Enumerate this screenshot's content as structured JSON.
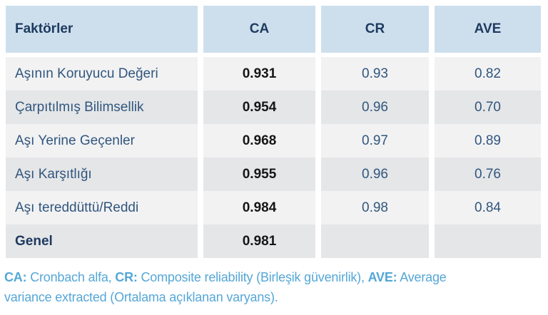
{
  "colors": {
    "header_bg": "#cddfed",
    "row_light": "#f2f2f3",
    "row_dark": "#e5e6e8",
    "header_text": "#1e3a5f",
    "body_text": "#31567e",
    "ca_value_text": "#161616",
    "footnote_text": "#55a7d7"
  },
  "table": {
    "columns": [
      "Faktörler",
      "CA",
      "CR",
      "AVE"
    ],
    "rows": [
      {
        "label": "Aşının Koruyucu Değeri",
        "ca": "0.931",
        "cr": "0.93",
        "ave": "0.82"
      },
      {
        "label": "Çarpıtılmış Bilimsellik",
        "ca": "0.954",
        "cr": "0.96",
        "ave": "0.70"
      },
      {
        "label": "Aşı Yerine Geçenler",
        "ca": "0.968",
        "cr": "0.97",
        "ave": "0.89"
      },
      {
        "label": "Aşı Karşıtlığı",
        "ca": "0.955",
        "cr": "0.96",
        "ave": "0.76"
      },
      {
        "label": "Aşı tereddüttü/Reddi",
        "ca": "0.984",
        "cr": "0.98",
        "ave": "0.84"
      },
      {
        "label": "Genel",
        "ca": "0.981",
        "cr": "",
        "ave": ""
      }
    ]
  },
  "footnote": {
    "line1": [
      {
        "text": "CA:",
        "bold": true
      },
      {
        "text": " Cronbach alfa, ",
        "bold": false
      },
      {
        "text": "CR:",
        "bold": true
      },
      {
        "text": " Composite reliability (Birleşik güvenirlik), ",
        "bold": false
      },
      {
        "text": "AVE:",
        "bold": true
      },
      {
        "text": " Average",
        "bold": false
      }
    ],
    "line2": [
      {
        "text": "variance extracted (Ortalama açıklanan varyans).",
        "bold": false
      }
    ]
  }
}
